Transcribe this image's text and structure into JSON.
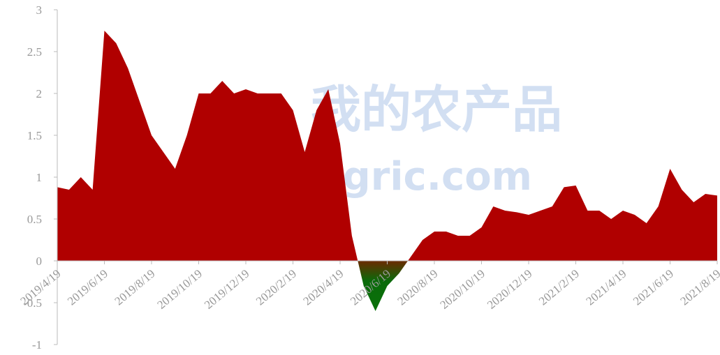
{
  "chart_data": {
    "type": "area",
    "watermark": [
      "我的农产品",
      "myagric.com"
    ],
    "categories": [
      "2019/4/19",
      null,
      null,
      null,
      "2019/6/19",
      null,
      null,
      null,
      "2019/8/19",
      null,
      null,
      null,
      "2019/10/19",
      null,
      null,
      null,
      "2019/12/19",
      null,
      null,
      null,
      "2020/2/19",
      null,
      null,
      null,
      "2020/4/19",
      null,
      null,
      null,
      "2020/6/19",
      null,
      null,
      null,
      "2020/8/19",
      null,
      null,
      null,
      "2020/10/19",
      null,
      null,
      null,
      "2020/12/19",
      null,
      null,
      null,
      "2021/2/19",
      null,
      null,
      null,
      "2021/4/19",
      null,
      null,
      null,
      "2021/6/19",
      null,
      null,
      null,
      "2021/8/19"
    ],
    "values": [
      0.88,
      0.85,
      1.0,
      0.85,
      2.75,
      2.6,
      2.3,
      1.9,
      1.5,
      1.3,
      1.1,
      1.5,
      2.0,
      2.0,
      2.15,
      2.0,
      2.05,
      2.0,
      2.0,
      2.0,
      1.8,
      1.3,
      1.8,
      2.05,
      1.4,
      0.3,
      -0.3,
      -0.6,
      -0.3,
      -0.15,
      0.05,
      0.25,
      0.35,
      0.35,
      0.3,
      0.3,
      0.4,
      0.65,
      0.6,
      0.58,
      0.55,
      0.6,
      0.65,
      0.88,
      0.9,
      0.6,
      0.6,
      0.5,
      0.6,
      0.55,
      0.45,
      0.65,
      1.1,
      0.85,
      0.7,
      0.8,
      0.78
    ],
    "color": "#b00000",
    "negative_color": "#0a7a0a",
    "ylim": [
      -1,
      3
    ],
    "yticks": [
      -1,
      {
        "value": -0.5,
        "label": "-0.5"
      },
      0,
      0.5,
      1,
      1.5,
      2,
      2.5,
      3
    ]
  }
}
